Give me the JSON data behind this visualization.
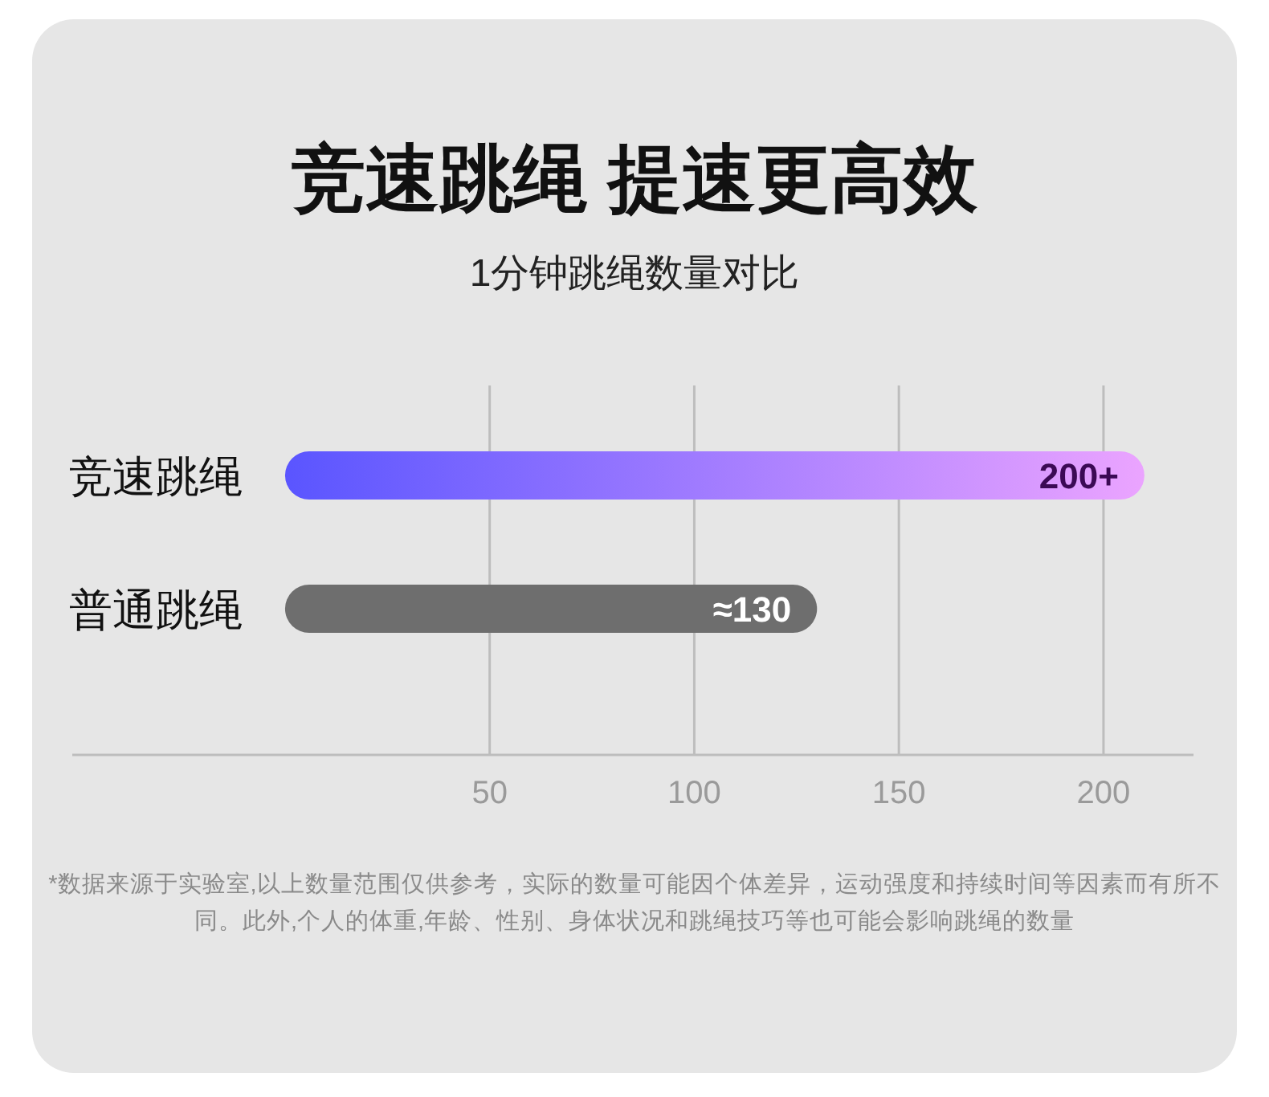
{
  "chart_data": {
    "type": "bar",
    "orientation": "horizontal",
    "title": "竞速跳绳 提速更高效",
    "subtitle": "1分钟跳绳数量对比",
    "categories": [
      "竞速跳绳",
      "普通跳绳"
    ],
    "values": [
      210,
      130
    ],
    "value_labels": [
      "200+",
      "≈130"
    ],
    "colors": [
      "#5a55ff",
      "#6e6e6e"
    ],
    "xlim": [
      -52,
      222
    ],
    "xticks": [
      50,
      100,
      150,
      200
    ],
    "grid": "x",
    "annotations": [
      "*数据来源于实验室,以上数量范围仅供参考，实际的数量可能因个体差异，运动强度和持续时间等因素而有所不同。此外,个人的体重,年龄、性别、身体状况和跳绳技巧等也可能会影响跳绳的数量"
    ]
  }
}
